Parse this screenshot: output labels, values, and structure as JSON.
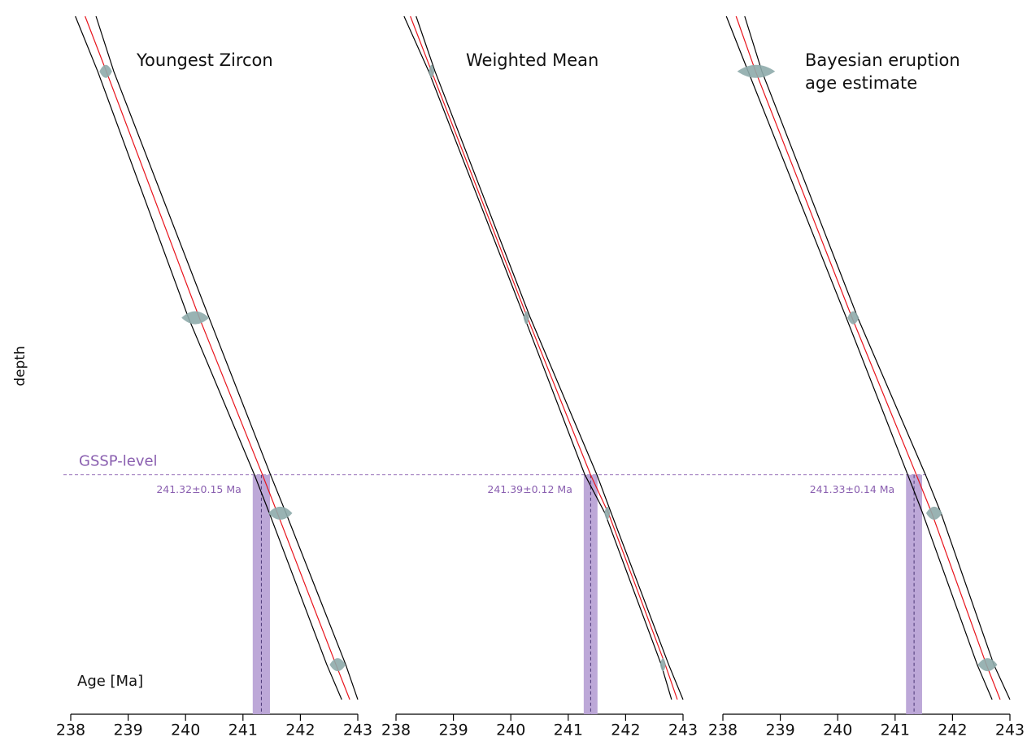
{
  "chart_data": [
    {
      "type": "line",
      "title": [
        "Youngest Zircon"
      ],
      "xlabel": "Age [Ma]",
      "ylabel": "depth",
      "xlim": [
        238,
        243
      ],
      "xticks": [
        238,
        239,
        240,
        241,
        242,
        243
      ],
      "ylim": [
        100,
        0
      ],
      "y": [
        0,
        7.9,
        43.2,
        65.7,
        71.2,
        92.9,
        97.9
      ],
      "series": [
        {
          "color": "#000000",
          "x": [
            238.08,
            238.47,
            240.05,
            241.2,
            241.46,
            242.46,
            242.72
          ]
        },
        {
          "color": "#e8141c",
          "x": [
            238.25,
            238.62,
            240.24,
            241.34,
            241.6,
            242.62,
            242.86
          ]
        },
        {
          "color": "#000000",
          "x": [
            238.44,
            238.75,
            240.41,
            241.48,
            241.75,
            242.79,
            243.0
          ]
        }
      ],
      "samples": {
        "color": "#8eabab",
        "x": [
          238.61,
          240.17,
          241.65,
          242.65
        ],
        "xerr": [
          0.11,
          0.24,
          0.21,
          0.14
        ],
        "y": [
          7.9,
          43.2,
          71.2,
          92.9
        ]
      },
      "reference_line": {
        "label": "GSSP-level",
        "y": 65.7,
        "color": "#8a5fb0"
      },
      "gssp_age": {
        "value": 241.32,
        "error": 0.15,
        "label": "241.32±0.15 Ma",
        "color": "#b9a3d6"
      }
    },
    {
      "type": "line",
      "title": [
        "Weighted Mean"
      ],
      "xlim": [
        238,
        243
      ],
      "xticks": [
        238,
        239,
        240,
        241,
        242,
        243
      ],
      "ylim": [
        100,
        0
      ],
      "y": [
        0,
        7.9,
        43.2,
        65.7,
        71.2,
        92.9,
        97.9
      ],
      "series": [
        {
          "color": "#000000",
          "x": [
            238.14,
            238.57,
            240.24,
            241.29,
            241.64,
            242.62,
            242.8
          ]
        },
        {
          "color": "#e8141c",
          "x": [
            238.25,
            238.62,
            240.29,
            241.39,
            241.7,
            242.69,
            242.9
          ]
        },
        {
          "color": "#000000",
          "x": [
            238.35,
            238.68,
            240.34,
            241.5,
            241.75,
            242.75,
            243.0
          ]
        }
      ],
      "samples": {
        "color": "#8eabab",
        "x": [
          238.62,
          240.27,
          241.68,
          242.65
        ],
        "xerr": [
          0.05,
          0.05,
          0.05,
          0.05
        ],
        "y": [
          7.9,
          43.2,
          71.2,
          92.9
        ]
      },
      "gssp_age": {
        "value": 241.39,
        "error": 0.12,
        "label": "241.39±0.12 Ma",
        "color": "#b9a3d6"
      }
    },
    {
      "type": "line",
      "title": [
        "Bayesian eruption",
        "age estimate"
      ],
      "xlim": [
        238,
        243
      ],
      "xticks": [
        238,
        239,
        240,
        241,
        242,
        243
      ],
      "ylim": [
        100,
        0
      ],
      "y": [
        0,
        7.9,
        43.2,
        65.7,
        71.2,
        92.9,
        97.9
      ],
      "series": [
        {
          "color": "#000000",
          "x": [
            238.06,
            238.44,
            240.15,
            241.22,
            241.48,
            242.43,
            242.69
          ]
        },
        {
          "color": "#e8141c",
          "x": [
            238.23,
            238.57,
            240.25,
            241.37,
            241.64,
            242.59,
            242.83
          ]
        },
        {
          "color": "#000000",
          "x": [
            238.38,
            238.68,
            240.35,
            241.53,
            241.8,
            242.72,
            243.0
          ]
        }
      ],
      "samples": {
        "color": "#8eabab",
        "x": [
          238.58,
          240.27,
          241.68,
          242.61
        ],
        "xerr": [
          0.33,
          0.1,
          0.14,
          0.17
        ],
        "y": [
          7.9,
          43.2,
          71.2,
          92.9
        ]
      },
      "gssp_age": {
        "value": 241.33,
        "error": 0.14,
        "label": "241.33±0.14 Ma",
        "color": "#b9a3d6"
      }
    }
  ]
}
